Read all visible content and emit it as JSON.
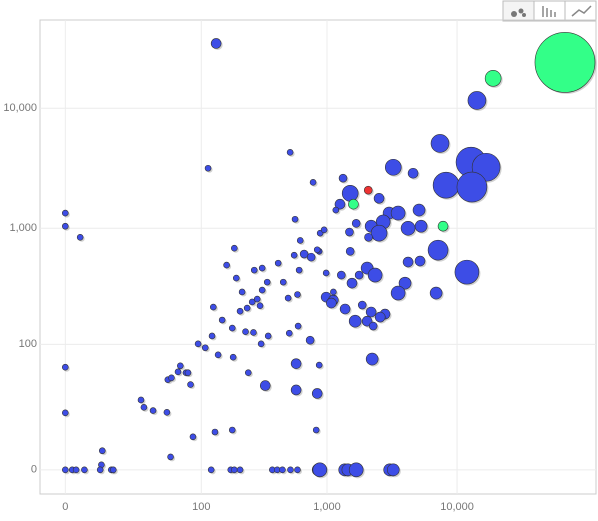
{
  "chart_data": {
    "type": "scatter",
    "x_scale": "log",
    "y_scale": "log",
    "grid": true,
    "xlim": [
      -3.6,
      116000
    ],
    "ylim": [
      -3.7,
      54000
    ],
    "xticks": [
      0,
      100,
      {
        "value": 1000,
        "label": "1,000"
      },
      {
        "value": 10000,
        "label": "10,000"
      }
    ],
    "yticks": [
      0,
      100,
      {
        "value": 1000,
        "label": "1,000"
      },
      {
        "value": 10000,
        "label": "10,000"
      }
    ],
    "series": [
      {
        "color": "#3d4de6",
        "x": [
          133,
          14200,
          7400,
          12800,
          16700,
          8240,
          13000,
          3240,
          4600,
          1510,
          2520,
          1330,
          517,
          780,
          114,
          1260,
          3010,
          3530,
          5110,
          2710,
          2190,
          4210,
          5300,
          2520,
          7150,
          565,
          187,
          1510,
          870,
          4210,
          5200,
          2040,
          2350,
          1770,
          11900,
          3990,
          3530,
          6910,
          985,
          1120,
          2190,
          2800,
          1650,
          2040,
          2270,
          2570,
          597,
          740,
          576,
          2230,
          870,
          330,
          576,
          840,
          825,
          130,
          180,
          85,
          9.2,
          8.9,
          0,
          0,
          3,
          0,
          0,
          28,
          37,
          30,
          50,
          54,
          51,
          55,
          63,
          66,
          74,
          77,
          81,
          94,
          108,
          123,
          126,
          149,
          138,
          180,
          183,
          208,
          237,
          260,
          285,
          312,
          342,
          270,
          312,
          417,
          457,
          499,
          556,
          608,
          665,
          242,
          348,
          230,
          306,
          509,
          300,
          590,
          266,
          754,
          840,
          194,
          216,
          162,
          1080,
          1380,
          1290,
          1120,
          1560,
          1870,
          985,
          885,
          1490,
          1680,
          2090,
          1170,
          620,
          950,
          0,
          1.3,
          2.1,
          4,
          8.5,
          12.5,
          13.3,
          121,
          175,
          187,
          208,
          375,
          410,
          450,
          520,
          590,
          855,
          880,
          1370,
          1450,
          1680,
          3040,
          3240
        ],
        "y": [
          34500,
          11600,
          5100,
          3560,
          3230,
          2290,
          2210,
          3230,
          2880,
          1960,
          1780,
          2620,
          4300,
          2420,
          3170,
          1590,
          1340,
          1340,
          1420,
          1130,
          1040,
          1000,
          1040,
          910,
          655,
          1190,
          680,
          640,
          640,
          520,
          530,
          462,
          403,
          403,
          427,
          344,
          283,
          283,
          261,
          246,
          194,
          186,
          161,
          161,
          146,
          175,
          146,
          109,
          66,
          73,
          64,
          40,
          36,
          33,
          11.4,
          10.6,
          11.4,
          8.8,
          4.4,
          1,
          1340,
          1040,
          840,
          61,
          19.7,
          28,
          21,
          23,
          20,
          2.8,
          46,
          48,
          55,
          63,
          54,
          54,
          41,
          101,
          93,
          119,
          214,
          165,
          80,
          140,
          76,
          197,
          210,
          237,
          251,
          300,
          351,
          444,
          462,
          509,
          351,
          256,
          594,
          444,
          607,
          54,
          119,
          130,
          101,
          126,
          220,
          275,
          128,
          572,
          660,
          380,
          289,
          490,
          232,
          206,
          403,
          289,
          344,
          223,
          420,
          910,
          930,
          1100,
          840,
          1420,
          790,
          970,
          0,
          0,
          0,
          0,
          0,
          0,
          0,
          0,
          0,
          0,
          0,
          0,
          0,
          0,
          0,
          0,
          0,
          0,
          0,
          0,
          0,
          0,
          0
        ],
        "sizes": [
          5,
          9,
          9,
          15,
          14,
          13,
          15,
          8,
          5,
          8,
          5,
          4,
          3,
          3,
          3,
          5,
          6,
          7,
          6,
          7,
          6,
          7,
          6,
          8,
          10,
          3,
          3,
          4,
          3,
          5,
          5,
          6,
          7,
          4,
          12,
          6,
          7,
          6,
          5,
          5,
          5,
          5,
          6,
          5,
          4,
          5,
          3,
          4,
          5,
          6,
          3,
          5,
          5,
          5,
          3,
          3,
          3,
          3,
          3,
          3,
          3,
          3,
          3,
          3,
          3,
          3,
          3,
          3,
          3,
          3,
          3,
          3,
          3,
          3,
          3,
          3,
          3,
          3,
          3,
          3,
          3,
          3,
          3,
          3,
          3,
          3,
          3,
          3,
          3,
          3,
          3,
          3,
          3,
          3,
          3,
          3,
          3,
          3,
          4,
          3,
          3,
          3,
          3,
          3,
          3,
          3,
          3,
          4,
          3,
          3,
          3,
          3,
          5,
          5,
          4,
          3,
          5,
          4,
          3,
          3,
          4,
          4,
          4,
          3,
          3,
          3,
          3,
          3,
          3,
          3,
          3,
          3,
          3,
          3,
          3,
          3,
          3,
          3,
          3,
          3,
          3,
          3,
          6,
          7,
          6,
          6,
          7,
          6,
          6
        ]
      },
      {
        "color": "#33ff88",
        "x": [
          67100,
          18900,
          1600,
          7810
        ],
        "y": [
          24000,
          17700,
          1590,
          1040
        ],
        "sizes": [
          30,
          8,
          5,
          5
        ]
      },
      {
        "color": "#ee3333",
        "x": [
          2080
        ],
        "y": [
          2080
        ],
        "sizes": [
          4
        ]
      }
    ]
  }
}
